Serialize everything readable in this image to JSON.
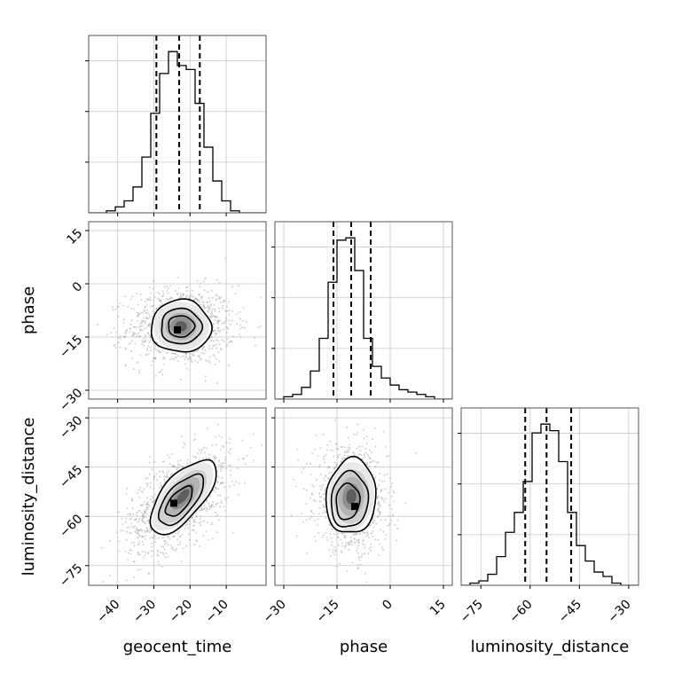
{
  "chart_data": {
    "type": "corner",
    "parameters": [
      "geocent_time",
      "phase",
      "luminosity_distance"
    ],
    "axis_labels": {
      "geocent_time": "geocent_time",
      "phase": "phase",
      "luminosity_distance": "luminosity_distance"
    },
    "ranges": {
      "geocent_time": [
        -48,
        1
      ],
      "phase": [
        -32.5,
        17.5
      ],
      "luminosity_distance": [
        -81,
        -27
      ]
    },
    "ticks": {
      "geocent_time": [
        -40,
        -30,
        -20,
        -10
      ],
      "phase": [
        -30,
        -15,
        0,
        15
      ],
      "luminosity_distance": [
        -75,
        -60,
        -45,
        -30
      ]
    },
    "tick_labels": {
      "geocent_time": [
        "−40",
        "−30",
        "−20",
        "−10"
      ],
      "phase": [
        "−30",
        "−15",
        "0",
        "15"
      ],
      "luminosity_distance": [
        "−75",
        "−60",
        "−45",
        "−30"
      ]
    },
    "quantiles": {
      "geocent_time": [
        -29.3,
        -23.0,
        -17.3
      ],
      "phase": [
        -16.0,
        -11.0,
        -5.5
      ],
      "luminosity_distance": [
        -61.5,
        -55.0,
        -47.5
      ]
    },
    "histograms": {
      "geocent_time": {
        "bin_edges": [
          -48,
          -45.55,
          -43.1,
          -40.65,
          -38.2,
          -35.75,
          -33.3,
          -30.85,
          -28.4,
          -25.95,
          -23.5,
          -21.05,
          -18.6,
          -16.15,
          -13.7,
          -11.25,
          -8.8,
          -6.35,
          -3.9,
          -1.45,
          1
        ],
        "counts": [
          0,
          0,
          1,
          3,
          6,
          13,
          28,
          50,
          70,
          81,
          74,
          72,
          55,
          33,
          16,
          6,
          1,
          0,
          0,
          0
        ]
      },
      "phase": {
        "bin_edges": [
          -32.5,
          -30,
          -27.5,
          -25,
          -22.5,
          -20,
          -17.5,
          -15,
          -12.5,
          -10,
          -7.5,
          -5,
          -2.5,
          0,
          2.5,
          5,
          7.5,
          10,
          12.5,
          15,
          17.5
        ],
        "counts": [
          0,
          1,
          2,
          5,
          12,
          26,
          50,
          68,
          69,
          55,
          26,
          14,
          9,
          6,
          4,
          3,
          2,
          1,
          0,
          0
        ]
      },
      "luminosity_distance": {
        "bin_edges": [
          -81,
          -78.3,
          -75.6,
          -72.9,
          -70.2,
          -67.5,
          -64.8,
          -62.1,
          -59.4,
          -56.7,
          -54,
          -51.3,
          -48.6,
          -45.9,
          -43.2,
          -40.5,
          -37.8,
          -35.1,
          -32.4,
          -29.7,
          -27
        ],
        "counts": [
          0,
          1,
          2,
          5,
          13,
          24,
          33,
          47,
          69,
          73,
          70,
          56,
          33,
          18,
          11,
          6,
          4,
          1,
          0,
          0
        ]
      }
    },
    "pairs": [
      {
        "x": "geocent_time",
        "y": "phase",
        "center": [
          -22.5,
          -12
        ],
        "sigma": [
          7,
          5.2
        ],
        "rho": 0.05,
        "contour_levels": [
          1.0,
          1.55,
          2.2
        ],
        "ellipses": [
          {
            "center": [
              -22.5,
              -12
            ],
            "semi_axes": [
              8.3,
              7.4
            ],
            "angle_deg": 0
          },
          {
            "center": [
              -22.5,
              -12
            ],
            "semi_axes": [
              5.6,
              5.0
            ],
            "angle_deg": 0
          },
          {
            "center": [
              -22.5,
              -12
            ],
            "semi_axes": [
              3.6,
              3.0
            ],
            "angle_deg": 0
          }
        ],
        "peak": [
          -23.5,
          -13
        ]
      },
      {
        "x": "geocent_time",
        "y": "luminosity_distance",
        "center": [
          -23,
          -55
        ],
        "sigma": [
          6.8,
          7.5
        ],
        "rho": 0.55,
        "contour_levels": [
          1.0,
          1.55,
          2.2
        ],
        "ellipses": [
          {
            "center": [
              -22,
              -54
            ],
            "semi_axes": [
              12.5,
              6.2
            ],
            "angle_deg": 50
          },
          {
            "center": [
              -22.5,
              -55
            ],
            "semi_axes": [
              8.5,
              4.2
            ],
            "angle_deg": 50
          },
          {
            "center": [
              -23,
              -55.5
            ],
            "semi_axes": [
              5.0,
              2.6
            ],
            "angle_deg": 50
          }
        ],
        "peak": [
          -24.5,
          -56
        ]
      },
      {
        "x": "phase",
        "y": "luminosity_distance",
        "center": [
          -11,
          -55
        ],
        "sigma": [
          4.8,
          7.5
        ],
        "rho": -0.1,
        "contour_levels": [
          1.0,
          1.55,
          2.2
        ],
        "ellipses": [
          {
            "center": [
              -11,
              -54
            ],
            "semi_axes": [
              7.0,
              11.5
            ],
            "angle_deg": -5
          },
          {
            "center": [
              -11.5,
              -55
            ],
            "semi_axes": [
              5.2,
              8.5
            ],
            "angle_deg": -5
          },
          {
            "center": [
              -12,
              -55.5
            ],
            "semi_axes": [
              3.3,
              5.5
            ],
            "angle_deg": -5
          }
        ],
        "peak": [
          -10,
          -57
        ]
      }
    ],
    "grid": true
  }
}
